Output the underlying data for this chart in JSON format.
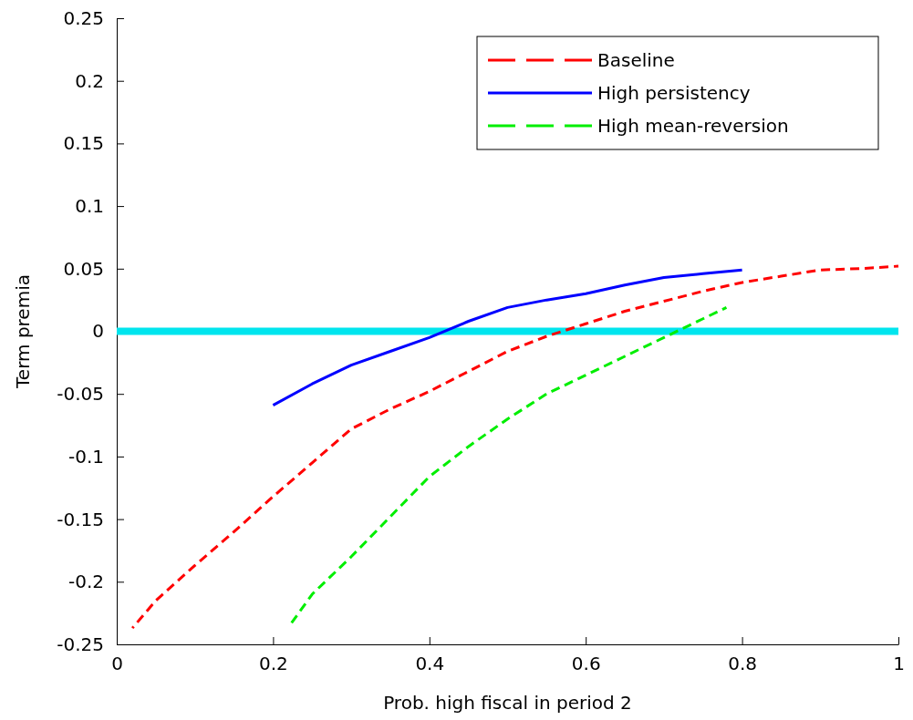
{
  "chart_data": {
    "type": "line",
    "xlabel": "Prob. high fiscal in period 2",
    "ylabel": "Term premia",
    "xlim": [
      0,
      1
    ],
    "xticks": [
      0,
      0.2,
      0.4,
      0.6,
      0.8,
      1
    ],
    "ylim": [
      -0.25,
      0.25
    ],
    "yticks": [
      -0.25,
      -0.2,
      -0.15,
      -0.1,
      -0.05,
      0,
      0.05,
      0.1,
      0.15,
      0.2,
      0.25
    ],
    "legend": "top right",
    "grid": false,
    "ref_lines": [
      {
        "axis": "y",
        "value": 0,
        "color": "#00e5ee"
      }
    ],
    "series": [
      {
        "name": "Baseline",
        "color": "#ff0000",
        "line_style": "dashed",
        "x": [
          0.02,
          0.05,
          0.1,
          0.15,
          0.2,
          0.25,
          0.3,
          0.35,
          0.4,
          0.45,
          0.5,
          0.55,
          0.6,
          0.65,
          0.7,
          0.75,
          0.8,
          0.85,
          0.9,
          0.95,
          1
        ],
        "values": [
          -0.237,
          -0.215,
          -0.187,
          -0.16,
          -0.132,
          -0.105,
          -0.078,
          -0.062,
          -0.048,
          -0.032,
          -0.016,
          -0.004,
          0.006,
          0.016,
          0.024,
          0.032,
          0.039,
          0.044,
          0.049,
          0.05,
          0.052
        ]
      },
      {
        "name": "High persistency",
        "color": "#0000ff",
        "line_style": "solid",
        "x": [
          0.2,
          0.25,
          0.3,
          0.35,
          0.4,
          0.45,
          0.5,
          0.55,
          0.6,
          0.65,
          0.7,
          0.75,
          0.8
        ],
        "values": [
          -0.059,
          -0.042,
          -0.027,
          -0.016,
          -0.005,
          0.008,
          0.019,
          0.025,
          0.03,
          0.037,
          0.043,
          0.046,
          0.049
        ]
      },
      {
        "name": "High mean-reversion",
        "color": "#00ee00",
        "line_style": "dashed",
        "x": [
          0.22,
          0.25,
          0.3,
          0.35,
          0.4,
          0.45,
          0.5,
          0.55,
          0.6,
          0.65,
          0.7,
          0.75,
          0.78
        ],
        "values": [
          -0.236,
          -0.21,
          -0.18,
          -0.148,
          -0.116,
          -0.092,
          -0.07,
          -0.05,
          -0.035,
          -0.02,
          -0.005,
          0.01,
          0.019
        ]
      }
    ]
  }
}
